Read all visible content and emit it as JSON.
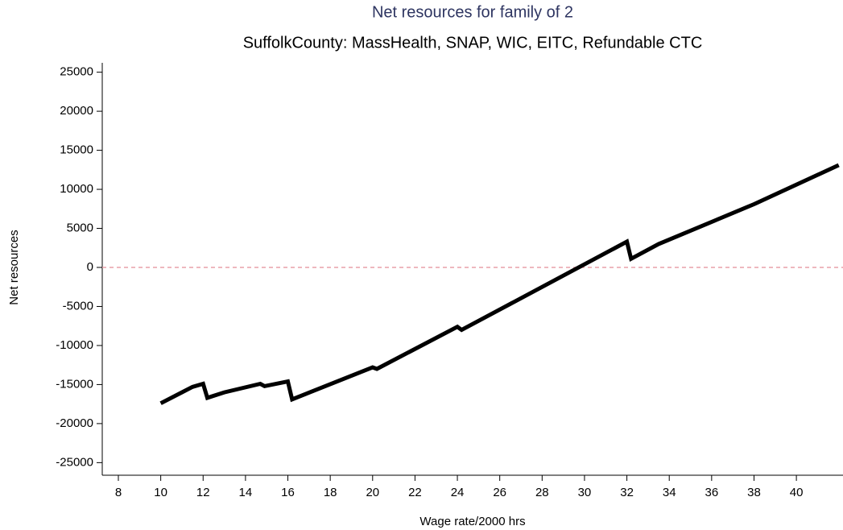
{
  "chart_data": {
    "type": "line",
    "title": "Net resources for family of 2",
    "subtitle": "SuffolkCounty:  MassHealth, SNAP, WIC, EITC, Refundable CTC",
    "x_label": "Wage rate/2000 hrs",
    "y_label": "Net resources",
    "x": [
      10,
      11,
      11.5,
      12,
      12.2,
      13,
      14.7,
      14.9,
      16,
      16.2,
      20,
      20.2,
      24,
      24.2,
      32,
      32.2,
      33.5,
      38,
      42
    ],
    "values": [
      -17400,
      -16000,
      -15300,
      -14900,
      -16700,
      -16000,
      -14900,
      -15200,
      -14600,
      -16900,
      -12800,
      -13000,
      -7600,
      -8000,
      3300,
      1100,
      3000,
      8100,
      13100
    ],
    "color": "#000000",
    "reference_line": 0,
    "reference_color": "#e8a0a8",
    "xlim": [
      7.24,
      42.2
    ],
    "ylim": [
      -26200,
      26200
    ],
    "xticks": [
      8,
      10,
      12,
      14,
      16,
      18,
      20,
      22,
      24,
      26,
      28,
      30,
      32,
      34,
      36,
      38,
      40
    ],
    "yticks": [
      -25000,
      -20000,
      -15000,
      -10000,
      -5000,
      0,
      5000,
      10000,
      15000,
      20000,
      25000
    ]
  }
}
